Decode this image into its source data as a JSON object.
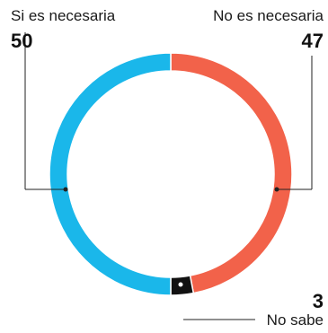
{
  "chart_data": {
    "type": "pie",
    "categories": [
      "Si es necesaria",
      "No es necesaria",
      "No sabe"
    ],
    "values": [
      50,
      47,
      3
    ],
    "colors": [
      "#1ab7ea",
      "#f2624a",
      "#111111"
    ],
    "style": "donut",
    "title": "",
    "legend": "none"
  },
  "labels": {
    "si": {
      "name": "Si es necesaria",
      "value": "50"
    },
    "no": {
      "name": "No es necesaria",
      "value": "47"
    },
    "ns": {
      "name": "No sabe",
      "value": "3"
    }
  }
}
